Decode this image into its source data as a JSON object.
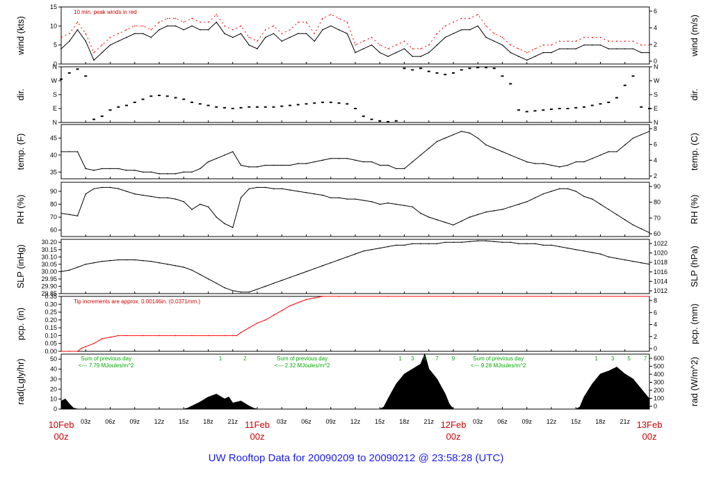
{
  "footer": {
    "prefix": "UW Rooftop Data for",
    "start": "20090209",
    "to": "to",
    "end": "20090212",
    "at": "@",
    "time": "23:58:28",
    "zone": "(UTC)"
  },
  "date_labels": [
    {
      "date": "10Feb",
      "time": "00z",
      "hour": 0
    },
    {
      "date": "11Feb",
      "time": "00z",
      "hour": 24
    },
    {
      "date": "12Feb",
      "time": "00z",
      "hour": 48
    },
    {
      "date": "13Feb",
      "time": "00z",
      "hour": 72
    }
  ],
  "hour_ticks": [
    "03z",
    "06z",
    "09z",
    "12z",
    "15z",
    "18z",
    "21z",
    "",
    "03z",
    "06z",
    "09z",
    "12z",
    "15z",
    "18z",
    "21z",
    "",
    "03z",
    "06z",
    "09z",
    "12z",
    "15z",
    "18z",
    "21z"
  ],
  "colors": {
    "axis": "#000000",
    "red": "#cc0000",
    "green": "#00aa00",
    "title": "#1a1aff"
  },
  "chart_data": [
    {
      "type": "line",
      "id": "wind",
      "ylabel": "wind (kts)",
      "y2label": "wind (m/s)",
      "ylim": [
        0,
        15
      ],
      "yticks": [
        "0",
        "5",
        "10",
        "15"
      ],
      "y2ticks": [
        "0",
        "2",
        "4",
        "6"
      ],
      "annotation": "10 min. peak winds in red",
      "x_hours": [
        0,
        1,
        2,
        3,
        4,
        5,
        6,
        7,
        8,
        9,
        10,
        11,
        12,
        13,
        14,
        15,
        16,
        17,
        18,
        19,
        20,
        21,
        22,
        23,
        24,
        25,
        26,
        27,
        28,
        29,
        30,
        31,
        32,
        33,
        34,
        35,
        36,
        37,
        38,
        39,
        40,
        41,
        42,
        43,
        44,
        45,
        46,
        47,
        48,
        49,
        50,
        51,
        52,
        53,
        54,
        55,
        56,
        57,
        58,
        59,
        60,
        61,
        62,
        63,
        64,
        65,
        66,
        67,
        68,
        69,
        70,
        71,
        72
      ],
      "series": [
        {
          "values": [
            4,
            6,
            9,
            6,
            1,
            3,
            5,
            6,
            7,
            8,
            8,
            7,
            9,
            10,
            10,
            9,
            10,
            9,
            9,
            11,
            8,
            7,
            8,
            5,
            4,
            7,
            8,
            6,
            7,
            8,
            8,
            6,
            9,
            10,
            9,
            8,
            3,
            4,
            5,
            3,
            2,
            3,
            4,
            2,
            2,
            3,
            5,
            7,
            8,
            9,
            9,
            10,
            7,
            6,
            5,
            3,
            2,
            1,
            2,
            3,
            3,
            4,
            4,
            4,
            5,
            5,
            5,
            4,
            4,
            4,
            4,
            3,
            3
          ]
        },
        {
          "values": [
            7,
            8,
            11,
            8,
            3,
            5,
            7,
            8,
            9,
            10,
            10,
            9,
            11,
            12,
            12,
            11,
            12,
            11,
            11,
            13,
            10,
            9,
            10,
            7,
            6,
            9,
            10,
            8,
            9,
            11,
            11,
            8,
            12,
            13,
            12,
            11,
            5,
            6,
            7,
            5,
            4,
            5,
            6,
            4,
            4,
            5,
            8,
            10,
            11,
            12,
            12,
            13,
            10,
            8,
            7,
            5,
            4,
            3,
            4,
            5,
            5,
            6,
            6,
            6,
            7,
            7,
            7,
            6,
            6,
            6,
            6,
            5,
            5
          ]
        }
      ]
    },
    {
      "type": "scatter",
      "id": "dir",
      "ylabel": "dir.",
      "y2label": "dir.",
      "ylim": [
        0,
        360
      ],
      "yticks": [
        "N",
        "E",
        "S",
        "W",
        "N"
      ],
      "y2ticks": [
        "N",
        "E",
        "S",
        "W",
        "N"
      ],
      "x_hours": [
        0,
        1,
        2,
        3,
        4,
        5,
        6,
        7,
        8,
        9,
        10,
        11,
        12,
        13,
        14,
        15,
        16,
        17,
        18,
        19,
        20,
        21,
        22,
        23,
        24,
        25,
        26,
        27,
        28,
        29,
        30,
        31,
        32,
        33,
        34,
        35,
        36,
        37,
        38,
        39,
        40,
        41,
        42,
        43,
        44,
        45,
        46,
        47,
        48,
        49,
        50,
        51,
        52,
        53,
        54,
        55,
        56,
        57,
        58,
        59,
        60,
        61,
        62,
        63,
        64,
        65,
        66,
        67,
        68,
        69,
        70,
        71,
        72
      ],
      "values": [
        280,
        320,
        345,
        300,
        20,
        40,
        80,
        100,
        110,
        130,
        150,
        170,
        175,
        170,
        160,
        150,
        130,
        120,
        110,
        100,
        95,
        90,
        95,
        100,
        100,
        100,
        100,
        105,
        110,
        115,
        120,
        125,
        130,
        130,
        125,
        120,
        90,
        40,
        20,
        10,
        5,
        10,
        350,
        340,
        350,
        330,
        320,
        310,
        320,
        340,
        350,
        355,
        355,
        350,
        300,
        250,
        80,
        70,
        75,
        80,
        85,
        90,
        90,
        95,
        100,
        110,
        120,
        130,
        160,
        240,
        300,
        100,
        90
      ]
    },
    {
      "type": "line",
      "id": "temp",
      "ylabel": "temp. (F)",
      "y2label": "temp. (C)",
      "ylim": [
        33,
        49
      ],
      "yticks": [
        "35",
        "40",
        "45"
      ],
      "y2ticks": [
        "2",
        "4",
        "6",
        "8"
      ],
      "x_hours": [
        0,
        1,
        2,
        3,
        4,
        5,
        6,
        7,
        8,
        9,
        10,
        11,
        12,
        13,
        14,
        15,
        16,
        17,
        18,
        19,
        20,
        21,
        22,
        23,
        24,
        25,
        26,
        27,
        28,
        29,
        30,
        31,
        32,
        33,
        34,
        35,
        36,
        37,
        38,
        39,
        40,
        41,
        42,
        43,
        44,
        45,
        46,
        47,
        48,
        49,
        50,
        51,
        52,
        53,
        54,
        55,
        56,
        57,
        58,
        59,
        60,
        61,
        62,
        63,
        64,
        65,
        66,
        67,
        68,
        69,
        70,
        71,
        72
      ],
      "values": [
        41,
        41,
        41,
        36,
        35.5,
        36,
        36,
        36,
        35.5,
        35.5,
        35,
        35,
        34.5,
        34.5,
        34.5,
        35,
        35,
        36,
        38,
        39,
        40,
        41,
        37,
        36.5,
        36.5,
        37,
        37,
        37,
        37,
        37.5,
        37.5,
        38,
        38.5,
        39,
        39,
        39,
        38.5,
        38,
        38,
        37,
        37,
        36,
        36,
        38,
        40,
        42,
        44,
        45,
        46,
        47,
        46.5,
        45,
        43,
        42,
        41,
        40,
        39,
        38,
        37.5,
        37.5,
        37,
        36.5,
        37,
        38,
        38,
        39,
        40,
        41,
        41,
        43,
        45,
        46,
        47
      ]
    },
    {
      "type": "line",
      "id": "rh",
      "ylabel": "RH (%)",
      "y2label": "RH (%)",
      "ylim": [
        55,
        97
      ],
      "yticks": [
        "60",
        "70",
        "80",
        "90"
      ],
      "y2ticks": [
        "60",
        "70",
        "80",
        "90"
      ],
      "x_hours": [
        0,
        1,
        2,
        3,
        4,
        5,
        6,
        7,
        8,
        9,
        10,
        11,
        12,
        13,
        14,
        15,
        16,
        17,
        18,
        19,
        20,
        21,
        22,
        23,
        24,
        25,
        26,
        27,
        28,
        29,
        30,
        31,
        32,
        33,
        34,
        35,
        36,
        37,
        38,
        39,
        40,
        41,
        42,
        43,
        44,
        45,
        46,
        47,
        48,
        49,
        50,
        51,
        52,
        53,
        54,
        55,
        56,
        57,
        58,
        59,
        60,
        61,
        62,
        63,
        64,
        65,
        66,
        67,
        68,
        69,
        70,
        71,
        72
      ],
      "values": [
        73,
        72,
        71,
        88,
        92,
        93,
        93,
        92,
        90,
        88,
        87,
        86,
        85,
        85,
        84,
        82,
        76,
        80,
        78,
        70,
        65,
        62,
        85,
        92,
        93,
        93,
        92,
        92,
        91,
        90,
        89,
        88,
        87,
        85,
        85,
        84,
        84,
        83,
        82,
        80,
        81,
        80,
        79,
        78,
        73,
        70,
        68,
        66,
        64,
        67,
        70,
        72,
        74,
        75,
        76,
        78,
        80,
        82,
        85,
        88,
        90,
        92,
        92,
        90,
        86,
        84,
        80,
        76,
        72,
        68,
        64,
        61,
        58
      ]
    },
    {
      "type": "line",
      "id": "slp",
      "ylabel": "SLP (inHg)",
      "y2label": "SLP (hPa)",
      "ylim": [
        29.85,
        30.22
      ],
      "yticks": [
        "29.85",
        "29.90",
        "29.95",
        "30.00",
        "30.05",
        "30.10",
        "30.15",
        "30.20"
      ],
      "y2ticks": [
        "1012",
        "1014",
        "1016",
        "1018",
        "1020",
        "1022"
      ],
      "x_hours": [
        0,
        1,
        2,
        3,
        4,
        5,
        6,
        7,
        8,
        9,
        10,
        11,
        12,
        13,
        14,
        15,
        16,
        17,
        18,
        19,
        20,
        21,
        22,
        23,
        24,
        25,
        26,
        27,
        28,
        29,
        30,
        31,
        32,
        33,
        34,
        35,
        36,
        37,
        38,
        39,
        40,
        41,
        42,
        43,
        44,
        45,
        46,
        47,
        48,
        49,
        50,
        51,
        52,
        53,
        54,
        55,
        56,
        57,
        58,
        59,
        60,
        61,
        62,
        63,
        64,
        65,
        66,
        67,
        68,
        69,
        70,
        71,
        72
      ],
      "values": [
        30.0,
        30.01,
        30.03,
        30.05,
        30.06,
        30.07,
        30.075,
        30.08,
        30.08,
        30.08,
        30.075,
        30.07,
        30.06,
        30.05,
        30.04,
        30.03,
        30.01,
        29.98,
        29.95,
        29.92,
        29.89,
        29.87,
        29.86,
        29.86,
        29.88,
        29.9,
        29.92,
        29.94,
        29.96,
        29.98,
        30.0,
        30.02,
        30.04,
        30.06,
        30.08,
        30.1,
        30.12,
        30.14,
        30.15,
        30.16,
        30.17,
        30.18,
        30.18,
        30.19,
        30.19,
        30.19,
        30.19,
        30.2,
        30.2,
        30.2,
        30.205,
        30.21,
        30.21,
        30.205,
        30.2,
        30.2,
        30.19,
        30.19,
        30.19,
        30.18,
        30.18,
        30.17,
        30.16,
        30.15,
        30.14,
        30.13,
        30.12,
        30.1,
        30.09,
        30.08,
        30.07,
        30.06,
        30.05
      ]
    },
    {
      "type": "line",
      "id": "pcp",
      "ylabel": "pcp. (in)",
      "y2label": "pcp. (mm)",
      "ylim": [
        0,
        0.35
      ],
      "yticks": [
        "0.00",
        "0.05",
        "0.10",
        "0.15",
        "0.20",
        "0.25",
        "0.30",
        "0.35"
      ],
      "y2ticks": [
        "0",
        "2",
        "4",
        "6",
        "8"
      ],
      "annotation": "Tip increments are approx. 0.00146in. (0.0371mm.)",
      "x_hours": [
        0,
        1,
        2,
        2.5,
        3,
        4,
        5,
        6,
        7,
        8,
        10,
        12,
        14,
        16,
        18,
        20,
        21,
        21.5,
        22,
        23,
        24,
        25,
        26,
        27,
        28,
        29,
        30,
        31,
        32,
        34,
        40,
        48,
        60,
        72
      ],
      "values": [
        0,
        0,
        0,
        0.02,
        0.03,
        0.05,
        0.08,
        0.09,
        0.1,
        0.1,
        0.1,
        0.1,
        0.1,
        0.1,
        0.1,
        0.1,
        0.1,
        0.1,
        0.12,
        0.15,
        0.18,
        0.2,
        0.23,
        0.26,
        0.29,
        0.31,
        0.33,
        0.34,
        0.35,
        0.35,
        0.35,
        0.35,
        0.35,
        0.35
      ]
    },
    {
      "type": "area",
      "id": "rad",
      "ylabel": "rad(Lgly/hr)",
      "y2label": "rad (W/m^2)",
      "ylim": [
        0,
        55
      ],
      "yticks": [
        "0",
        "10",
        "20",
        "30",
        "40",
        "50"
      ],
      "y2ticks": [
        "0",
        "100",
        "200",
        "300",
        "400",
        "500",
        "600"
      ],
      "x_hours": [
        0,
        0.5,
        1,
        1.5,
        2,
        15,
        15.5,
        16,
        17,
        18,
        19,
        20,
        20.5,
        21,
        22,
        23,
        23.5,
        24,
        39,
        39.5,
        40,
        41,
        42,
        43,
        44,
        44.5,
        45,
        46,
        47,
        47.5,
        48,
        63,
        63.5,
        64,
        65,
        66,
        67,
        68,
        69,
        70,
        71,
        72
      ],
      "values": [
        8,
        10,
        5,
        1,
        0,
        0,
        1,
        3,
        7,
        12,
        15,
        10,
        12,
        6,
        8,
        3,
        1,
        0,
        0,
        2,
        10,
        25,
        35,
        40,
        45,
        55,
        40,
        30,
        15,
        5,
        0,
        0,
        2,
        12,
        25,
        35,
        38,
        42,
        35,
        30,
        20,
        10
      ],
      "annotations": [
        {
          "hour": 5.5,
          "lines": [
            "Sum of previous day",
            "<--- 7.79 MJoules/m^2"
          ]
        },
        {
          "hour": 29.5,
          "lines": [
            "Sum of previous day",
            "<--- 2.32 MJoules/m^2"
          ]
        },
        {
          "hour": 53.5,
          "lines": [
            "Sum of previous day",
            "<--- 9.28 MJoules/m^2"
          ]
        }
      ],
      "markers": [
        {
          "hour": 19.5,
          "label": "1"
        },
        {
          "hour": 22.5,
          "label": "2"
        },
        {
          "hour": 41.5,
          "label": "1"
        },
        {
          "hour": 43.0,
          "label": "3"
        },
        {
          "hour": 44.5,
          "label": "5"
        },
        {
          "hour": 46.0,
          "label": "7"
        },
        {
          "hour": 48.0,
          "label": "9"
        },
        {
          "hour": 65.5,
          "label": "1"
        },
        {
          "hour": 67.5,
          "label": "3"
        },
        {
          "hour": 69.5,
          "label": "5"
        },
        {
          "hour": 71.5,
          "label": "7"
        }
      ]
    }
  ]
}
